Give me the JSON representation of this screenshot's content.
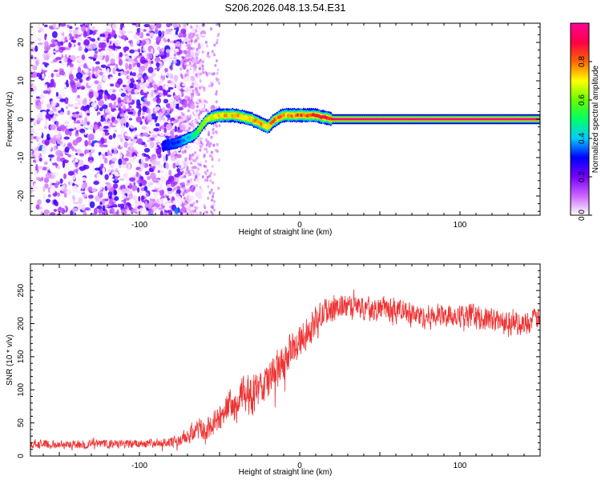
{
  "title": "S206.2026.048.13.54.E31",
  "chart_data": [
    {
      "type": "heatmap",
      "xlabel": "Height of straight line (km)",
      "ylabel": "Frequency (Hz)",
      "xlim": [
        -168,
        150
      ],
      "ylim": [
        -25,
        25
      ],
      "xticks": [
        -100,
        0,
        100
      ],
      "yticks": [
        -20,
        -10,
        0,
        10,
        20
      ],
      "colorbar": {
        "label": "Normalized spectral amplitude",
        "range": [
          0,
          1
        ],
        "ticks": [
          "0.0",
          "0.2",
          "0.4",
          "0.6",
          "0.8"
        ],
        "colors": [
          "#ffffff",
          "#cc66ff",
          "#7700ff",
          "#0000ff",
          "#00ccff",
          "#00ff66",
          "#66ff00",
          "#ffff00",
          "#ff6600",
          "#ff0044",
          "#ff0099"
        ]
      },
      "ridge": {
        "description_points_km": [
          -85,
          -75,
          -65,
          -58,
          -50,
          -40,
          -30,
          -20,
          -15,
          -10,
          0,
          10,
          20,
          40,
          60,
          100,
          150
        ],
        "freq_hz": [
          -7,
          -6,
          -4,
          0,
          1,
          1,
          0,
          -2,
          0,
          1,
          1,
          1,
          0,
          0,
          0,
          0,
          0
        ],
        "amplitude": [
          0.3,
          0.35,
          0.5,
          0.7,
          0.75,
          0.75,
          0.75,
          0.8,
          0.8,
          0.8,
          0.85,
          0.9,
          0.95,
          0.97,
          0.98,
          0.98,
          0.98
        ]
      },
      "noise_region_km": [
        -168,
        -60
      ]
    },
    {
      "type": "line",
      "xlabel": "Height of straight line (km)",
      "ylabel": "SNR (10 * v/v)",
      "xlim": [
        -168,
        150
      ],
      "ylim": [
        0,
        290
      ],
      "xticks": [
        -100,
        0,
        100
      ],
      "yticks": [
        0,
        50,
        100,
        150,
        200,
        250
      ],
      "color": "#ee3333",
      "series": [
        {
          "name": "SNR",
          "x": [
            -168,
            -150,
            -130,
            -110,
            -90,
            -75,
            -65,
            -58,
            -50,
            -45,
            -40,
            -35,
            -30,
            -25,
            -20,
            -15,
            -10,
            -5,
            0,
            5,
            10,
            15,
            20,
            30,
            40,
            60,
            80,
            100,
            120,
            140,
            150
          ],
          "values": [
            18,
            17,
            18,
            18,
            20,
            22,
            40,
            38,
            55,
            80,
            70,
            95,
            90,
            100,
            110,
            125,
            140,
            160,
            175,
            190,
            205,
            215,
            225,
            225,
            225,
            220,
            210,
            215,
            205,
            200,
            210
          ],
          "noise_amplitude": [
            8,
            8,
            8,
            8,
            8,
            12,
            20,
            22,
            25,
            30,
            30,
            35,
            35,
            35,
            40,
            40,
            35,
            30,
            30,
            30,
            25,
            25,
            25,
            22,
            22,
            22,
            22,
            22,
            22,
            22,
            20
          ]
        }
      ]
    }
  ]
}
